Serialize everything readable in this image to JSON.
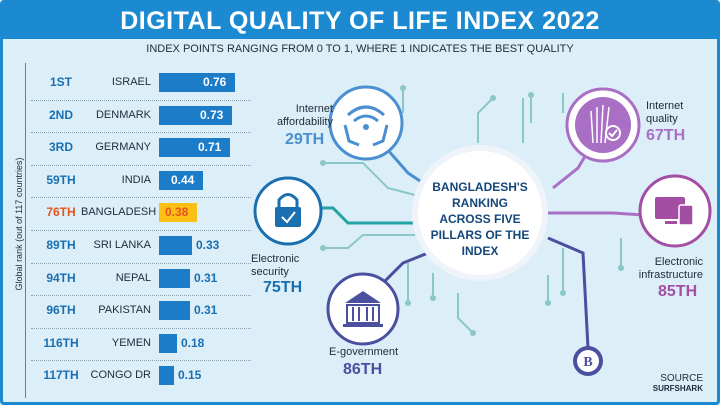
{
  "header": {
    "title": "DIGITAL QUALITY OF LIFE INDEX 2022",
    "subtitle": "INDEX POINTS RANGING FROM 0 TO 1, WHERE 1 INDICATES THE BEST QUALITY"
  },
  "chart_data": {
    "type": "bar",
    "orientation": "horizontal",
    "ylabel": "Global rank (out of 117 countries)",
    "xlim": [
      0,
      1
    ],
    "highlight": "BANGLADESH",
    "colors": {
      "bar": "#1b7cc8",
      "highlight_bar": "#fbbf15",
      "rank": "#1a6fb0",
      "highlight_rank": "#e3561c"
    },
    "rows": [
      {
        "rank": "1ST",
        "country": "ISRAEL",
        "value": 0.76
      },
      {
        "rank": "2ND",
        "country": "DENMARK",
        "value": 0.73
      },
      {
        "rank": "3RD",
        "country": "GERMANY",
        "value": 0.71
      },
      {
        "rank": "59TH",
        "country": "INDIA",
        "value": 0.44
      },
      {
        "rank": "76TH",
        "country": "BANGLADESH",
        "value": 0.38
      },
      {
        "rank": "89TH",
        "country": "SRI LANKA",
        "value": 0.33
      },
      {
        "rank": "94TH",
        "country": "NEPAL",
        "value": 0.31
      },
      {
        "rank": "96TH",
        "country": "PAKISTAN",
        "value": 0.31
      },
      {
        "rank": "116TH",
        "country": "YEMEN",
        "value": 0.18
      },
      {
        "rank": "117TH",
        "country": "CONGO DR",
        "value": 0.15
      }
    ]
  },
  "pillars": {
    "center": "BANGLADESH'S RANKING ACROSS FIVE PILLARS OF THE INDEX",
    "items": [
      {
        "label": "Internet affordability",
        "rank": "29TH",
        "icon": "wifi-hands-icon",
        "color": "#4a8fd0"
      },
      {
        "label": "Internet quality",
        "rank": "67TH",
        "icon": "fiber-optic-icon",
        "color": "#a86fc4"
      },
      {
        "label": "Electronic security",
        "rank": "75TH",
        "icon": "lock-icon",
        "color": "#1a6fb0"
      },
      {
        "label": "Electronic infrastructure",
        "rank": "85TH",
        "icon": "devices-icon",
        "color": "#a34da3"
      },
      {
        "label": "E-government",
        "rank": "86TH",
        "icon": "government-building-icon",
        "color": "#4b4fa0"
      }
    ]
  },
  "source": {
    "label": "SOURCE",
    "name": "SURFSHARK"
  }
}
